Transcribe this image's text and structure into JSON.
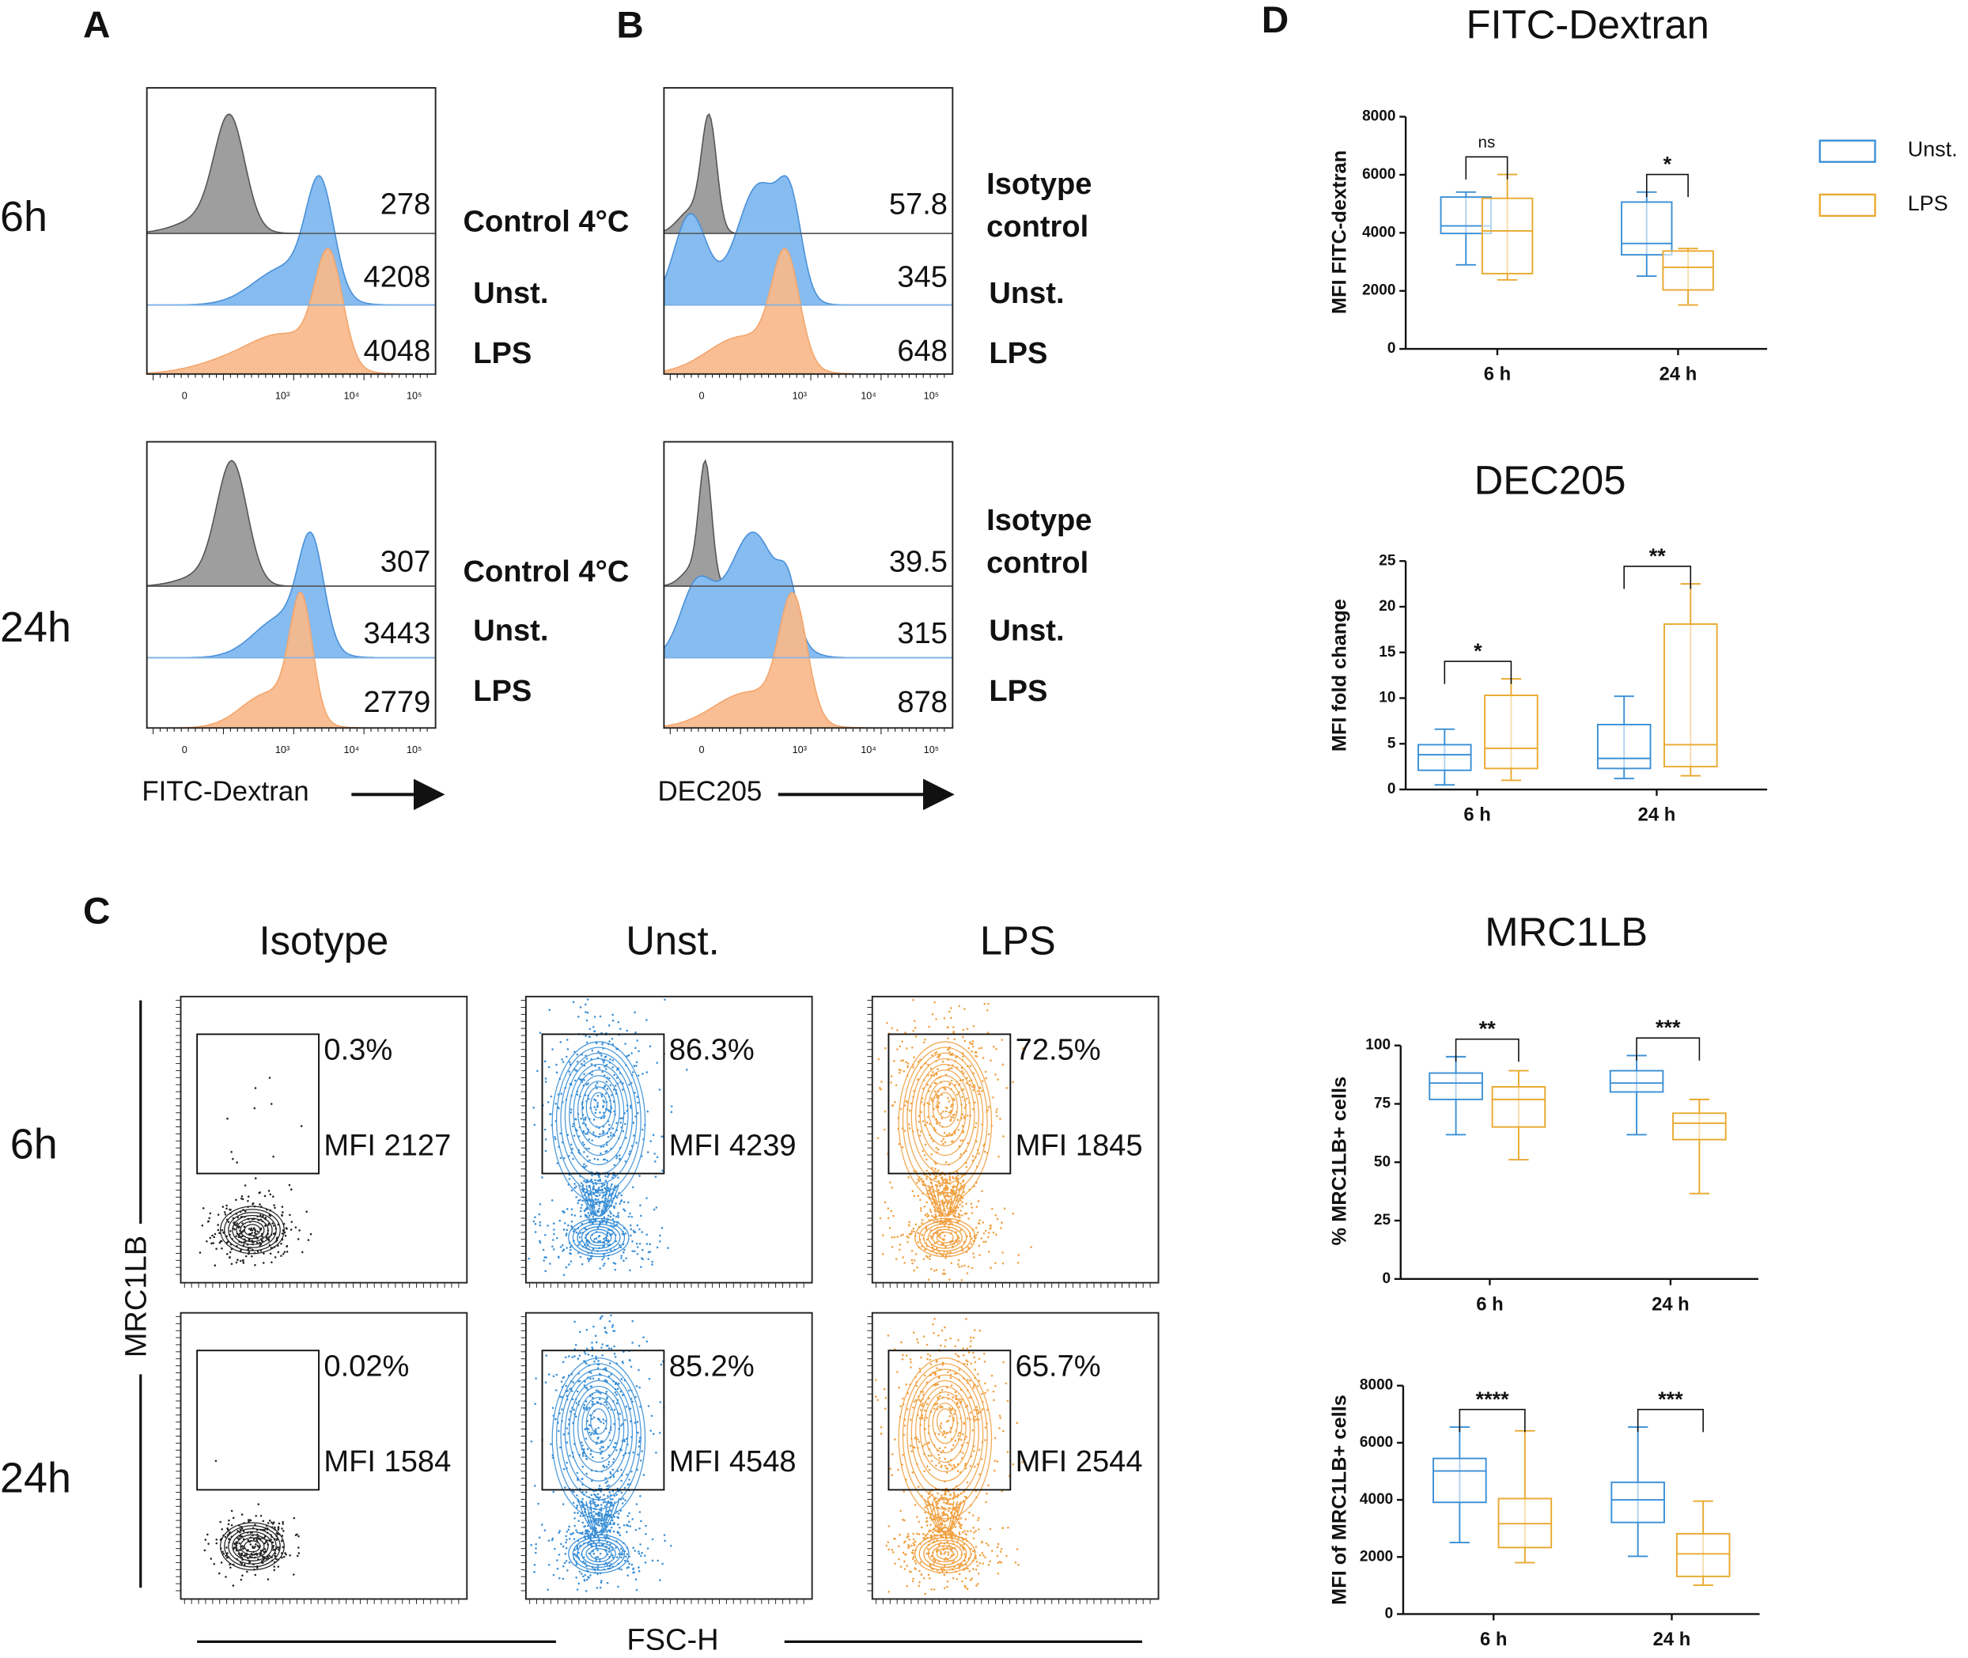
{
  "panel_labels": [
    "A",
    "B",
    "C",
    "D"
  ],
  "histograms": {
    "row_labels": [
      "6h",
      "24h"
    ],
    "axis_ticks": [
      "0",
      "10³",
      "10⁴",
      "10⁵"
    ],
    "A": {
      "x_label": "FITC-Dextran",
      "rows": [
        {
          "values": [
            278,
            4208,
            4048
          ],
          "labels": [
            [
              "Control 4°C"
            ],
            [
              "Unst."
            ],
            [
              "LPS"
            ]
          ]
        },
        {
          "values": [
            307,
            3443,
            2779
          ],
          "labels": [
            [
              "Control 4°C"
            ],
            [
              "Unst."
            ],
            [
              "LPS"
            ]
          ]
        }
      ]
    },
    "B": {
      "x_label": "DEC205",
      "rows": [
        {
          "values": [
            57.8,
            345,
            648
          ],
          "labels": [
            [
              "Isotype",
              "control"
            ],
            [
              "Unst."
            ],
            [
              "LPS"
            ]
          ]
        },
        {
          "values": [
            39.5,
            315,
            878
          ],
          "labels": [
            [
              "Isotype",
              "control"
            ],
            [
              "Unst."
            ],
            [
              "LPS"
            ]
          ]
        }
      ]
    }
  },
  "contours": {
    "columns": [
      "Isotype",
      "Unst.",
      "LPS"
    ],
    "row_labels": [
      "6h",
      "24h"
    ],
    "y_label": "MRC1LB",
    "x_label": "FSC-H",
    "gates": [
      [
        {
          "percent": "0.3%",
          "mfi": "MFI 2127"
        },
        {
          "percent": "86.3%",
          "mfi": "MFI 4239"
        },
        {
          "percent": "72.5%",
          "mfi": "MFI 1845"
        }
      ],
      [
        {
          "percent": "0.02%",
          "mfi": "MFI 1584"
        },
        {
          "percent": "85.2%",
          "mfi": "MFI 4548"
        },
        {
          "percent": "65.7%",
          "mfi": "MFI 2544"
        }
      ]
    ]
  },
  "chart_data": [
    {
      "type": "box",
      "title": "FITC-Dextran",
      "y_label": "MFI FITC-dextran",
      "categories": [
        "6 h",
        "24 h"
      ],
      "ylim": [
        0,
        8000
      ],
      "yticks": [
        0,
        2000,
        4000,
        6000,
        8000
      ],
      "significance": [
        "ns",
        "*"
      ],
      "legend": "right",
      "series": [
        {
          "name": "Unst.",
          "color": "#3a8fd6",
          "min": [
            2897,
            2508
          ],
          "q1": [
            3978,
            3243
          ],
          "median": [
            4238,
            3632
          ],
          "q3": [
            5232,
            5060
          ],
          "max": [
            5405,
            5405
          ]
        },
        {
          "name": "LPS",
          "color": "#e9a92e",
          "min": [
            2378,
            1513
          ],
          "q1": [
            2595,
            2032
          ],
          "median": [
            4065,
            2811
          ],
          "q3": [
            5189,
            3373
          ],
          "max": [
            6011,
            3459
          ]
        }
      ]
    },
    {
      "type": "box",
      "title": "DEC205",
      "y_label": "MFI fold change",
      "categories": [
        "6 h",
        "24 h"
      ],
      "ylim": [
        0,
        25
      ],
      "yticks": [
        0,
        5,
        10,
        15,
        20,
        25
      ],
      "significance": [
        "*",
        "**"
      ],
      "series": [
        {
          "color": "#3a8fd6",
          "min": [
            0.5,
            1.2
          ],
          "q1": [
            2.1,
            2.3
          ],
          "median": [
            3.8,
            3.4
          ],
          "q3": [
            4.9,
            7.1
          ],
          "max": [
            6.6,
            10.2
          ]
        },
        {
          "color": "#e9a92e",
          "min": [
            1.0,
            1.5
          ],
          "q1": [
            2.3,
            2.5
          ],
          "median": [
            4.5,
            4.9
          ],
          "q3": [
            10.3,
            18.1
          ],
          "max": [
            12.1,
            22.5
          ]
        }
      ]
    },
    {
      "type": "box",
      "title": "MRC1LB",
      "y_label": "% MRC1LB+ cells",
      "categories": [
        "6 h",
        "24 h"
      ],
      "ylim": [
        0,
        100
      ],
      "yticks": [
        0,
        25,
        50,
        75,
        100
      ],
      "significance": [
        "**",
        "***"
      ],
      "series": [
        {
          "color": "#3a8fd6",
          "min": [
            61.8,
            61.8
          ],
          "q1": [
            76.9,
            80.1
          ],
          "median": [
            83.9,
            83.9
          ],
          "q3": [
            88.2,
            89.2
          ],
          "max": [
            95.2,
            95.7
          ]
        },
        {
          "color": "#e9a92e",
          "min": [
            51.1,
            36.6
          ],
          "q1": [
            65.1,
            59.7
          ],
          "median": [
            76.9,
            66.7
          ],
          "q3": [
            82.3,
            71.0
          ],
          "max": [
            89.2,
            76.9
          ]
        }
      ]
    },
    {
      "type": "box",
      "y_label": "MFI of MRC1LB+ cells",
      "categories": [
        "6 h",
        "24 h"
      ],
      "ylim": [
        0,
        8000
      ],
      "yticks": [
        0,
        2000,
        4000,
        6000,
        8000
      ],
      "significance": [
        "****",
        "***"
      ],
      "series": [
        {
          "color": "#3a8fd6",
          "min": [
            2505,
            2022
          ],
          "q1": [
            3912,
            3209
          ],
          "median": [
            5011,
            4000
          ],
          "q3": [
            5451,
            4615
          ],
          "max": [
            6549,
            6549
          ]
        },
        {
          "color": "#e9a92e",
          "min": [
            1802,
            1011
          ],
          "q1": [
            2330,
            1319
          ],
          "median": [
            3165,
            2110
          ],
          "q3": [
            4044,
            2813
          ],
          "max": [
            6418,
            3956
          ]
        }
      ]
    }
  ]
}
